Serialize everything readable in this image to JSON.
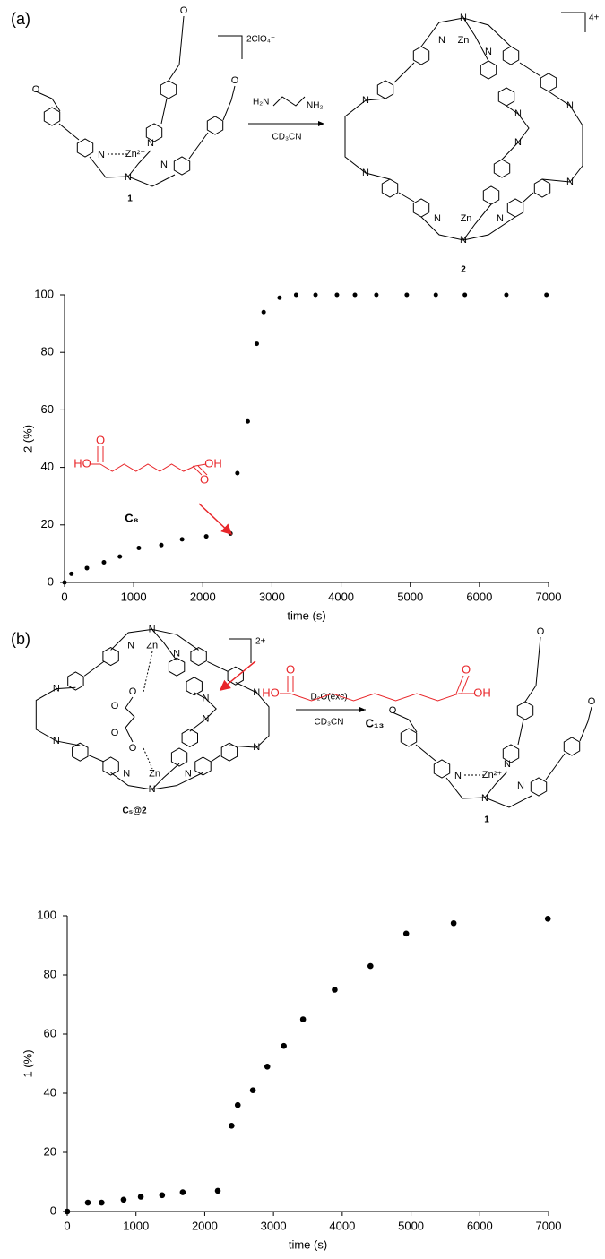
{
  "scheme_a": {
    "panel": "(a)",
    "counterion": "2ClO₄⁻",
    "product_charge": "4+",
    "reagent": [
      "H₂N",
      "NH₂"
    ],
    "solvent": "CD₃CN",
    "reactant": {
      "label": "1",
      "atoms": [
        "O",
        "O",
        "O",
        "N",
        "N",
        "N",
        "N",
        "Zn²⁺"
      ]
    },
    "product": {
      "label": "2",
      "atoms": [
        "N",
        "Zn",
        "N",
        "N",
        "N",
        "N",
        "N",
        "N",
        "N",
        "N",
        "N",
        "Zn",
        "N",
        "N"
      ]
    }
  },
  "scheme_b": {
    "panel": "(b)",
    "reactant_charge": "2+",
    "reagent": "D₂O(exc)",
    "solvent": "CD₃CN",
    "reactant": {
      "label": "C₅@2",
      "atoms": [
        "N",
        "Zn",
        "N",
        "N",
        "N",
        "N",
        "N",
        "N",
        "N",
        "N",
        "N",
        "Zn",
        "N",
        "N",
        "O",
        "O",
        "O",
        "O"
      ]
    },
    "product": {
      "label": "1",
      "atoms": [
        "O",
        "O",
        "O",
        "N",
        "N",
        "N",
        "N",
        "Zn²⁺"
      ]
    }
  },
  "chart_data": [
    {
      "type": "scatter",
      "x_label": "time (s)",
      "y_label": "2 (%)",
      "color": "#000000",
      "x": [
        0,
        100,
        324,
        570,
        800,
        1075,
        1400,
        1700,
        2050,
        2400,
        2500,
        2650,
        2780,
        2880,
        3110,
        3350,
        3630,
        3940,
        4200,
        4510,
        4950,
        5370,
        5790,
        6390,
        6970
      ],
      "values": [
        0,
        3,
        5,
        7,
        9,
        12,
        13,
        15,
        16,
        17,
        38,
        56,
        83,
        94,
        99,
        100,
        100,
        100,
        100,
        100,
        100,
        100,
        100,
        100,
        100
      ],
      "xlim": [
        0,
        7000
      ],
      "xticks": [
        0,
        1000,
        2000,
        3000,
        4000,
        5000,
        6000,
        7000
      ],
      "ylim": [
        0,
        100
      ],
      "yticks": [
        0,
        20,
        40,
        60,
        80,
        100
      ],
      "annotation": {
        "label": "C₈",
        "atoms": [
          "HO",
          "O",
          "O",
          "OH"
        ],
        "color": "#e8262a"
      }
    },
    {
      "type": "scatter",
      "x_label": "time (s)",
      "y_label": "1 (%)",
      "color": "#000000",
      "x": [
        0,
        300,
        500,
        820,
        1070,
        1380,
        1680,
        2190,
        2390,
        2480,
        2700,
        2910,
        3150,
        3430,
        3890,
        4410,
        4930,
        5620,
        6990
      ],
      "values": [
        0,
        3,
        3,
        4,
        5,
        5.5,
        6.5,
        7,
        29,
        36,
        41,
        49,
        56,
        65,
        75,
        83,
        94,
        97.5,
        99
      ],
      "xlim": [
        0,
        7000
      ],
      "xticks": [
        0,
        1000,
        2000,
        3000,
        4000,
        5000,
        6000,
        7000
      ],
      "ylim": [
        0,
        100
      ],
      "yticks": [
        0,
        20,
        40,
        60,
        80,
        100
      ],
      "annotation": {
        "label": "C₁₃",
        "atoms": [
          "HO",
          "O",
          "O",
          "OH"
        ],
        "color": "#e8262a"
      }
    }
  ]
}
